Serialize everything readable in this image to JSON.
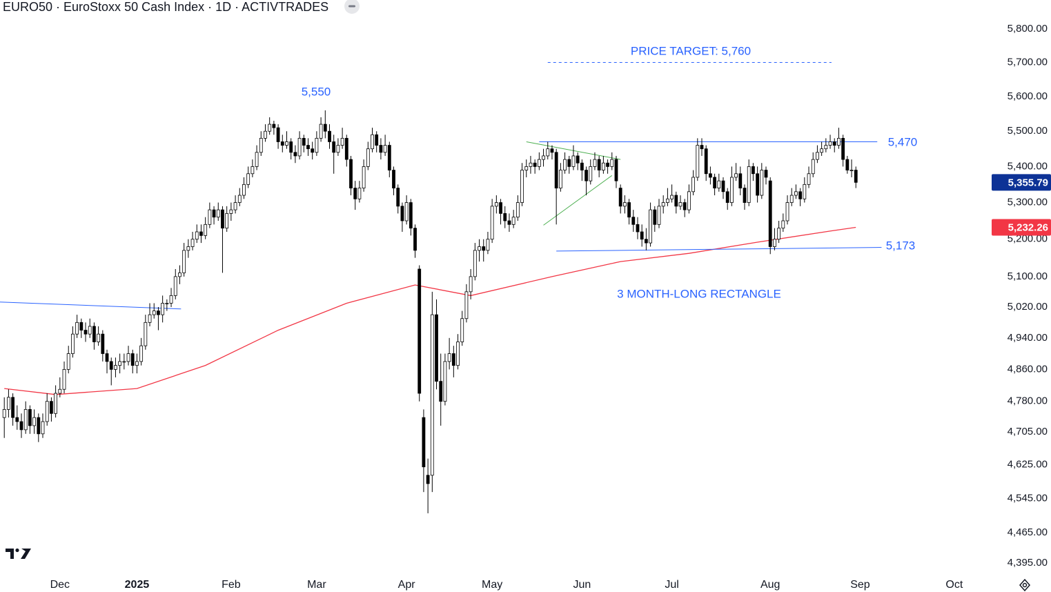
{
  "chart_data": {
    "type": "candlestick",
    "title": "EURO50 · EuroStoxx 50 Cash Index · 1D · ACTIVTRADES",
    "up_color": "#ffffff",
    "down_color": "#000000",
    "outline_color": "#000000",
    "xlim": [
      -1,
      229.6
    ],
    "xticks": [
      {
        "value": 13,
        "label": "Dec"
      },
      {
        "value": 31,
        "label": "2025"
      },
      {
        "value": 53,
        "label": "Feb"
      },
      {
        "value": 73,
        "label": "Mar"
      },
      {
        "value": 94,
        "label": "Apr"
      },
      {
        "value": 114,
        "label": "May"
      },
      {
        "value": 135,
        "label": "Jun"
      },
      {
        "value": 156,
        "label": "Jul"
      },
      {
        "value": 179,
        "label": "Aug"
      },
      {
        "value": 200,
        "label": "Sep"
      },
      {
        "value": 222,
        "label": "Oct"
      }
    ],
    "ylim": [
      4373,
      5888
    ],
    "log": true,
    "grid": false,
    "yticks": [
      {
        "value": 5800,
        "label": "5,800.00"
      },
      {
        "value": 5700,
        "label": "5,700.00"
      },
      {
        "value": 5600,
        "label": "5,600.00"
      },
      {
        "value": 5500,
        "label": "5,500.00"
      },
      {
        "value": 5400,
        "label": "5,400.00"
      },
      {
        "value": 5300,
        "label": "5,300.00"
      },
      {
        "value": 5200,
        "label": "5,200.00"
      },
      {
        "value": 5100,
        "label": "5,100.00"
      },
      {
        "value": 5020,
        "label": "5,020.00"
      },
      {
        "value": 4940,
        "label": "4,940.00"
      },
      {
        "value": 4860,
        "label": "4,860.00"
      },
      {
        "value": 4780,
        "label": "4,780.00"
      },
      {
        "value": 4705,
        "label": "4,705.00"
      },
      {
        "value": 4625,
        "label": "4,625.00"
      },
      {
        "value": 4545,
        "label": "4,545.00"
      },
      {
        "value": 4465,
        "label": "4,465.00"
      },
      {
        "value": 4395,
        "label": "4,395.00"
      }
    ],
    "ohlc": [
      [
        4740,
        4790,
        4690,
        4760
      ],
      [
        4760,
        4810,
        4740,
        4790
      ],
      [
        4790,
        4800,
        4720,
        4740
      ],
      [
        4740,
        4770,
        4710,
        4730
      ],
      [
        4730,
        4750,
        4690,
        4710
      ],
      [
        4710,
        4780,
        4700,
        4760
      ],
      [
        4760,
        4770,
        4700,
        4720
      ],
      [
        4720,
        4760,
        4700,
        4740
      ],
      [
        4740,
        4750,
        4680,
        4700
      ],
      [
        4700,
        4750,
        4690,
        4730
      ],
      [
        4730,
        4800,
        4720,
        4780
      ],
      [
        4780,
        4790,
        4730,
        4750
      ],
      [
        4750,
        4820,
        4740,
        4800
      ],
      [
        4800,
        4840,
        4790,
        4810
      ],
      [
        4810,
        4880,
        4800,
        4860
      ],
      [
        4860,
        4920,
        4850,
        4900
      ],
      [
        4900,
        4970,
        4890,
        4950
      ],
      [
        4950,
        5000,
        4940,
        4980
      ],
      [
        4980,
        4990,
        4940,
        4960
      ],
      [
        4960,
        4980,
        4930,
        4950
      ],
      [
        4950,
        4990,
        4940,
        4970
      ],
      [
        4970,
        4980,
        4910,
        4930
      ],
      [
        4930,
        4970,
        4920,
        4950
      ],
      [
        4950,
        4960,
        4880,
        4900
      ],
      [
        4900,
        4910,
        4850,
        4880
      ],
      [
        4880,
        4890,
        4820,
        4860
      ],
      [
        4860,
        4890,
        4840,
        4870
      ],
      [
        4870,
        4900,
        4850,
        4880
      ],
      [
        4880,
        4900,
        4860,
        4880
      ],
      [
        4880,
        4920,
        4870,
        4900
      ],
      [
        4900,
        4910,
        4850,
        4870
      ],
      [
        4870,
        4900,
        4850,
        4880
      ],
      [
        4880,
        4940,
        4870,
        4920
      ],
      [
        4920,
        5000,
        4910,
        4980
      ],
      [
        4980,
        5030,
        4970,
        5000
      ],
      [
        5000,
        5030,
        4990,
        5010
      ],
      [
        5010,
        5020,
        4960,
        5000
      ],
      [
        5000,
        5050,
        4980,
        5030
      ],
      [
        5030,
        5040,
        5010,
        5030
      ],
      [
        5030,
        5070,
        5020,
        5050
      ],
      [
        5050,
        5120,
        5040,
        5100
      ],
      [
        5100,
        5130,
        5080,
        5110
      ],
      [
        5110,
        5190,
        5100,
        5170
      ],
      [
        5170,
        5200,
        5150,
        5180
      ],
      [
        5180,
        5220,
        5170,
        5200
      ],
      [
        5200,
        5240,
        5190,
        5220
      ],
      [
        5220,
        5240,
        5190,
        5210
      ],
      [
        5210,
        5260,
        5200,
        5240
      ],
      [
        5240,
        5300,
        5230,
        5280
      ],
      [
        5280,
        5290,
        5240,
        5260
      ],
      [
        5260,
        5300,
        5250,
        5280
      ],
      [
        5280,
        5290,
        5110,
        5230
      ],
      [
        5230,
        5290,
        5220,
        5270
      ],
      [
        5270,
        5300,
        5250,
        5280
      ],
      [
        5280,
        5320,
        5270,
        5300
      ],
      [
        5300,
        5340,
        5290,
        5320
      ],
      [
        5320,
        5370,
        5310,
        5350
      ],
      [
        5350,
        5400,
        5340,
        5380
      ],
      [
        5380,
        5420,
        5370,
        5400
      ],
      [
        5400,
        5460,
        5390,
        5440
      ],
      [
        5440,
        5500,
        5430,
        5480
      ],
      [
        5480,
        5520,
        5470,
        5500
      ],
      [
        5500,
        5540,
        5490,
        5520
      ],
      [
        5520,
        5530,
        5490,
        5510
      ],
      [
        5510,
        5520,
        5450,
        5470
      ],
      [
        5470,
        5490,
        5440,
        5460
      ],
      [
        5460,
        5500,
        5450,
        5470
      ],
      [
        5470,
        5480,
        5420,
        5440
      ],
      [
        5440,
        5460,
        5410,
        5430
      ],
      [
        5430,
        5500,
        5420,
        5480
      ],
      [
        5480,
        5490,
        5440,
        5460
      ],
      [
        5460,
        5480,
        5430,
        5450
      ],
      [
        5450,
        5470,
        5420,
        5440
      ],
      [
        5440,
        5500,
        5430,
        5480
      ],
      [
        5480,
        5540,
        5470,
        5520
      ],
      [
        5520,
        5560,
        5480,
        5500
      ],
      [
        5500,
        5520,
        5450,
        5470
      ],
      [
        5470,
        5490,
        5380,
        5440
      ],
      [
        5440,
        5480,
        5430,
        5460
      ],
      [
        5460,
        5510,
        5450,
        5480
      ],
      [
        5480,
        5490,
        5400,
        5420
      ],
      [
        5420,
        5430,
        5320,
        5340
      ],
      [
        5340,
        5360,
        5280,
        5310
      ],
      [
        5310,
        5360,
        5300,
        5340
      ],
      [
        5340,
        5420,
        5330,
        5400
      ],
      [
        5400,
        5470,
        5390,
        5450
      ],
      [
        5450,
        5510,
        5440,
        5490
      ],
      [
        5490,
        5500,
        5440,
        5460
      ],
      [
        5460,
        5480,
        5420,
        5440
      ],
      [
        5440,
        5490,
        5430,
        5460
      ],
      [
        5460,
        5470,
        5370,
        5390
      ],
      [
        5390,
        5400,
        5320,
        5340
      ],
      [
        5340,
        5350,
        5270,
        5290
      ],
      [
        5290,
        5300,
        5220,
        5250
      ],
      [
        5250,
        5320,
        5240,
        5300
      ],
      [
        5300,
        5310,
        5210,
        5230
      ],
      [
        5230,
        5240,
        5150,
        5170
      ],
      [
        5120,
        5130,
        4780,
        4800
      ],
      [
        4740,
        4760,
        4560,
        4620
      ],
      [
        4600,
        4640,
        4510,
        4580
      ],
      [
        4600,
        5060,
        4560,
        5000
      ],
      [
        5000,
        5040,
        4810,
        4830
      ],
      [
        4830,
        4900,
        4720,
        4780
      ],
      [
        4780,
        4900,
        4770,
        4880
      ],
      [
        4880,
        4940,
        4860,
        4900
      ],
      [
        4900,
        4920,
        4840,
        4870
      ],
      [
        4870,
        4950,
        4860,
        4930
      ],
      [
        4930,
        5010,
        4920,
        4990
      ],
      [
        4990,
        5080,
        4980,
        5060
      ],
      [
        5060,
        5120,
        5040,
        5100
      ],
      [
        5100,
        5190,
        5090,
        5170
      ],
      [
        5170,
        5200,
        5140,
        5180
      ],
      [
        5180,
        5200,
        5140,
        5170
      ],
      [
        5170,
        5220,
        5160,
        5200
      ],
      [
        5200,
        5310,
        5190,
        5290
      ],
      [
        5290,
        5320,
        5270,
        5300
      ],
      [
        5300,
        5310,
        5240,
        5270
      ],
      [
        5270,
        5290,
        5230,
        5250
      ],
      [
        5250,
        5270,
        5220,
        5240
      ],
      [
        5240,
        5280,
        5230,
        5260
      ],
      [
        5260,
        5320,
        5250,
        5300
      ],
      [
        5300,
        5410,
        5290,
        5390
      ],
      [
        5390,
        5420,
        5370,
        5400
      ],
      [
        5400,
        5430,
        5380,
        5410
      ],
      [
        5410,
        5420,
        5380,
        5400
      ],
      [
        5400,
        5440,
        5390,
        5420
      ],
      [
        5420,
        5450,
        5400,
        5430
      ],
      [
        5430,
        5470,
        5420,
        5450
      ],
      [
        5450,
        5460,
        5420,
        5440
      ],
      [
        5440,
        5450,
        5240,
        5340
      ],
      [
        5340,
        5410,
        5330,
        5390
      ],
      [
        5390,
        5440,
        5380,
        5420
      ],
      [
        5420,
        5430,
        5380,
        5400
      ],
      [
        5400,
        5460,
        5390,
        5430
      ],
      [
        5430,
        5440,
        5390,
        5410
      ],
      [
        5410,
        5420,
        5360,
        5390
      ],
      [
        5390,
        5400,
        5320,
        5360
      ],
      [
        5360,
        5420,
        5350,
        5400
      ],
      [
        5400,
        5440,
        5390,
        5420
      ],
      [
        5420,
        5430,
        5370,
        5390
      ],
      [
        5390,
        5430,
        5380,
        5410
      ],
      [
        5410,
        5420,
        5380,
        5400
      ],
      [
        5400,
        5440,
        5390,
        5420
      ],
      [
        5420,
        5430,
        5340,
        5360
      ],
      [
        5340,
        5350,
        5270,
        5290
      ],
      [
        5290,
        5320,
        5270,
        5300
      ],
      [
        5300,
        5310,
        5240,
        5260
      ],
      [
        5260,
        5280,
        5220,
        5240
      ],
      [
        5240,
        5260,
        5200,
        5220
      ],
      [
        5220,
        5240,
        5180,
        5200
      ],
      [
        5200,
        5230,
        5170,
        5190
      ],
      [
        5190,
        5300,
        5180,
        5280
      ],
      [
        5280,
        5290,
        5220,
        5240
      ],
      [
        5240,
        5310,
        5230,
        5290
      ],
      [
        5290,
        5320,
        5270,
        5300
      ],
      [
        5300,
        5340,
        5290,
        5310
      ],
      [
        5310,
        5350,
        5300,
        5320
      ],
      [
        5320,
        5330,
        5270,
        5290
      ],
      [
        5290,
        5320,
        5280,
        5300
      ],
      [
        5300,
        5310,
        5260,
        5280
      ],
      [
        5280,
        5350,
        5270,
        5330
      ],
      [
        5330,
        5390,
        5320,
        5370
      ],
      [
        5370,
        5480,
        5360,
        5460
      ],
      [
        5460,
        5480,
        5430,
        5450
      ],
      [
        5450,
        5460,
        5360,
        5380
      ],
      [
        5380,
        5400,
        5350,
        5370
      ],
      [
        5370,
        5380,
        5320,
        5340
      ],
      [
        5340,
        5380,
        5330,
        5360
      ],
      [
        5360,
        5370,
        5310,
        5330
      ],
      [
        5330,
        5340,
        5280,
        5300
      ],
      [
        5300,
        5400,
        5290,
        5370
      ],
      [
        5370,
        5410,
        5360,
        5380
      ],
      [
        5380,
        5400,
        5320,
        5340
      ],
      [
        5340,
        5350,
        5280,
        5300
      ],
      [
        5300,
        5420,
        5290,
        5400
      ],
      [
        5400,
        5410,
        5360,
        5380
      ],
      [
        5380,
        5400,
        5300,
        5320
      ],
      [
        5320,
        5410,
        5310,
        5390
      ],
      [
        5390,
        5400,
        5350,
        5370
      ],
      [
        5360,
        5370,
        5160,
        5180
      ],
      [
        5180,
        5230,
        5170,
        5200
      ],
      [
        5200,
        5250,
        5190,
        5230
      ],
      [
        5230,
        5270,
        5220,
        5250
      ],
      [
        5250,
        5320,
        5240,
        5300
      ],
      [
        5300,
        5340,
        5290,
        5320
      ],
      [
        5320,
        5350,
        5310,
        5330
      ],
      [
        5330,
        5340,
        5290,
        5310
      ],
      [
        5310,
        5370,
        5300,
        5350
      ],
      [
        5350,
        5400,
        5340,
        5380
      ],
      [
        5380,
        5440,
        5370,
        5420
      ],
      [
        5420,
        5460,
        5410,
        5440
      ],
      [
        5440,
        5470,
        5430,
        5450
      ],
      [
        5450,
        5480,
        5440,
        5460
      ],
      [
        5460,
        5490,
        5450,
        5470
      ],
      [
        5470,
        5480,
        5440,
        5460
      ],
      [
        5460,
        5510,
        5450,
        5480
      ],
      [
        5480,
        5490,
        5400,
        5420
      ],
      [
        5420,
        5430,
        5380,
        5390
      ],
      [
        5390,
        5420,
        5370,
        5390
      ],
      [
        5390,
        5400,
        5340,
        5355.79
      ]
    ],
    "last_price_label": "5,355.79",
    "last_price_color": "#0d3296",
    "moving_average": {
      "color": "#f23645",
      "x": [
        0,
        12,
        31,
        47,
        64,
        80,
        96,
        109,
        128,
        144,
        160,
        176,
        193,
        199
      ],
      "values": [
        4812,
        4797,
        4812,
        4870,
        4960,
        5030,
        5078,
        5050,
        5100,
        5140,
        5162,
        5192,
        5222,
        5232.26
      ],
      "value_label": "5,232.26"
    },
    "lines": [
      {
        "x": [
          -1,
          41.3
        ],
        "values": [
          5033,
          5015
        ],
        "color": "#2962ff"
      },
      {
        "x": [
          125,
          204
        ],
        "values": [
          5470,
          5470
        ],
        "color": "#2962ff"
      },
      {
        "x": [
          129,
          205
        ],
        "values": [
          5168,
          5178
        ],
        "color": "#2962ff"
      },
      {
        "x": [
          127,
          193.3
        ],
        "values": [
          5700,
          5700
        ],
        "color": "#2962ff",
        "dashed": true
      },
      {
        "x": [
          122,
          144
        ],
        "values": [
          5470,
          5420
        ],
        "color": "#4caf50"
      },
      {
        "x": [
          126,
          142
        ],
        "values": [
          5238,
          5375
        ],
        "color": "#4caf50"
      }
    ],
    "annotations": [
      "PRICE TARGET: 5,760",
      "5,550",
      "5,470",
      "5,173",
      "3 MONTH-LONG RECTANGLE"
    ]
  }
}
